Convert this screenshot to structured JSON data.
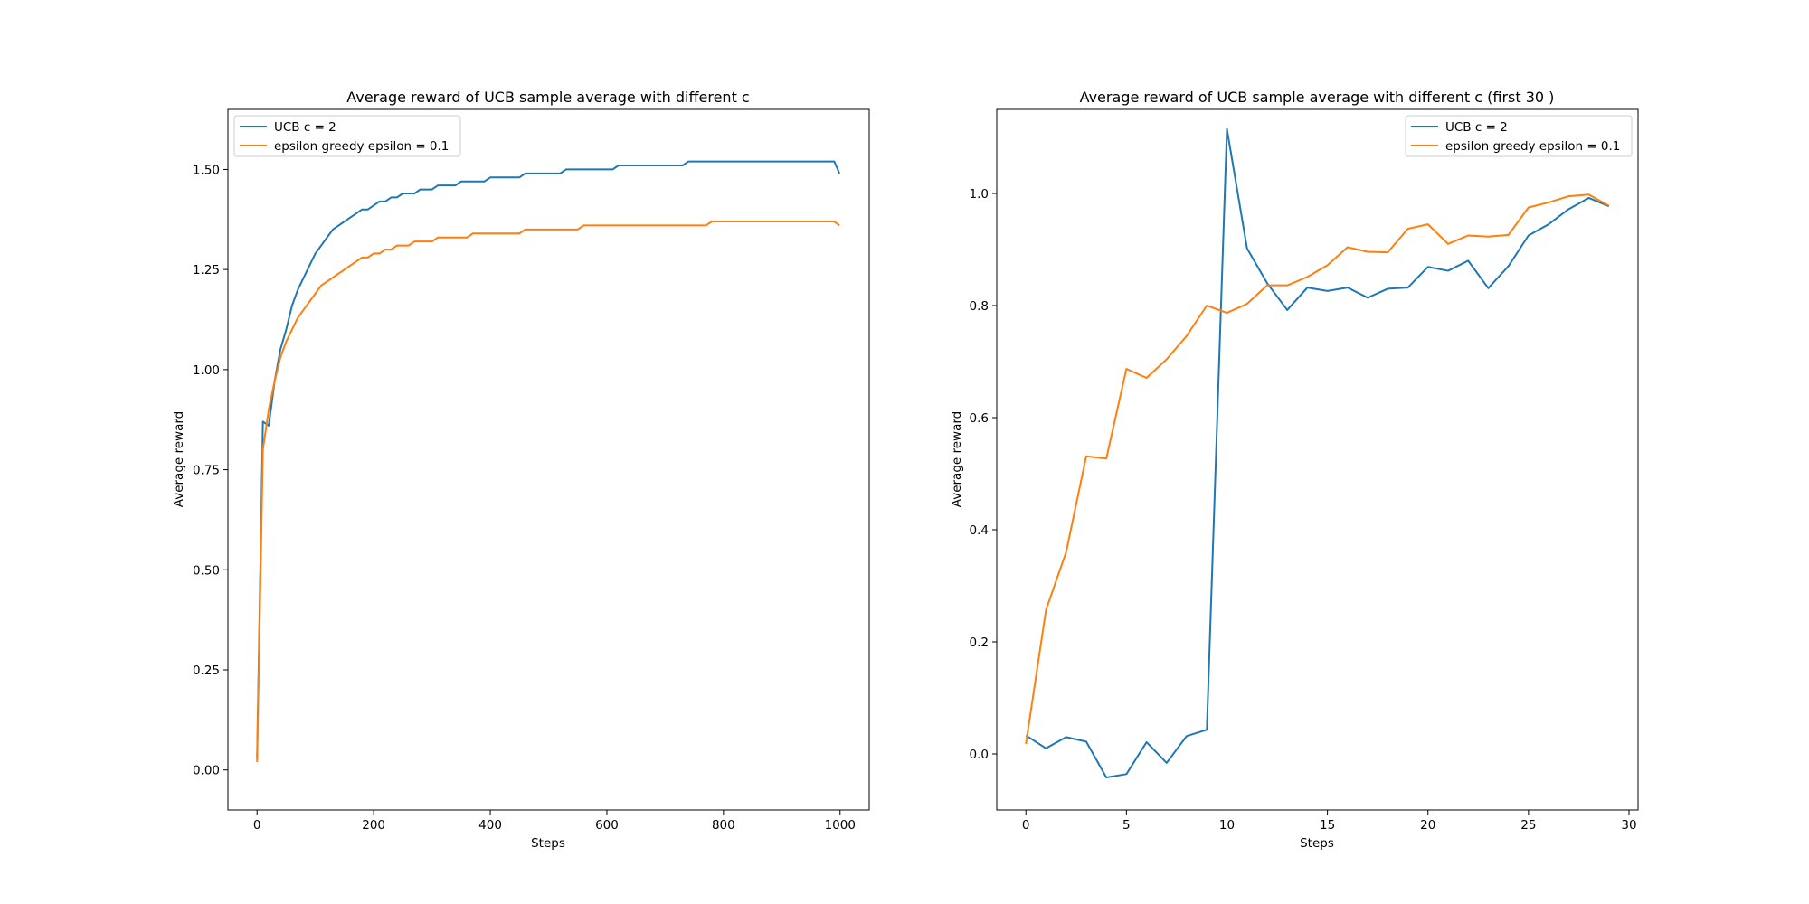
{
  "chart_data": [
    {
      "type": "line",
      "title": "Average reward of UCB sample average with different c",
      "xlabel": "Steps",
      "ylabel": "Average reward",
      "xlim": [
        -50,
        1050
      ],
      "ylim": [
        -0.1,
        1.65
      ],
      "xticks": [
        0,
        200,
        400,
        600,
        800,
        1000
      ],
      "xtick_labels": [
        "0",
        "200",
        "400",
        "600",
        "800",
        "1000"
      ],
      "yticks": [
        0.0,
        0.25,
        0.5,
        0.75,
        1.0,
        1.25,
        1.5
      ],
      "ytick_labels": [
        "0.00",
        "0.25",
        "0.50",
        "0.75",
        "1.00",
        "1.25",
        "1.50"
      ],
      "legend_position": "upper-left",
      "grid": false,
      "sampled_every": 10,
      "x": [
        0,
        10,
        20,
        30,
        40,
        50,
        60,
        70,
        80,
        90,
        100,
        110,
        120,
        130,
        140,
        150,
        160,
        170,
        180,
        190,
        200,
        210,
        220,
        230,
        240,
        250,
        260,
        270,
        280,
        290,
        300,
        310,
        320,
        330,
        340,
        350,
        360,
        370,
        380,
        390,
        400,
        410,
        420,
        430,
        440,
        450,
        460,
        470,
        480,
        490,
        500,
        510,
        520,
        530,
        540,
        550,
        560,
        570,
        580,
        590,
        600,
        610,
        620,
        630,
        640,
        650,
        660,
        670,
        680,
        690,
        700,
        710,
        720,
        730,
        740,
        750,
        760,
        770,
        780,
        790,
        800,
        810,
        820,
        830,
        840,
        850,
        860,
        870,
        880,
        890,
        900,
        910,
        920,
        930,
        940,
        950,
        960,
        970,
        980,
        990,
        999
      ],
      "series": [
        {
          "name": "UCB c = 2",
          "color": "#1f77b4",
          "values": [
            0.03,
            0.87,
            0.86,
            0.97,
            1.05,
            1.1,
            1.16,
            1.2,
            1.23,
            1.26,
            1.29,
            1.31,
            1.33,
            1.35,
            1.36,
            1.37,
            1.38,
            1.39,
            1.4,
            1.4,
            1.41,
            1.42,
            1.42,
            1.43,
            1.43,
            1.44,
            1.44,
            1.44,
            1.45,
            1.45,
            1.45,
            1.46,
            1.46,
            1.46,
            1.46,
            1.47,
            1.47,
            1.47,
            1.47,
            1.47,
            1.48,
            1.48,
            1.48,
            1.48,
            1.48,
            1.48,
            1.49,
            1.49,
            1.49,
            1.49,
            1.49,
            1.49,
            1.49,
            1.5,
            1.5,
            1.5,
            1.5,
            1.5,
            1.5,
            1.5,
            1.5,
            1.5,
            1.51,
            1.51,
            1.51,
            1.51,
            1.51,
            1.51,
            1.51,
            1.51,
            1.51,
            1.51,
            1.51,
            1.51,
            1.52,
            1.52,
            1.52,
            1.52,
            1.52,
            1.52,
            1.52,
            1.52,
            1.52,
            1.52,
            1.52,
            1.52,
            1.52,
            1.52,
            1.52,
            1.52,
            1.52,
            1.52,
            1.52,
            1.52,
            1.52,
            1.52,
            1.52,
            1.52,
            1.52,
            1.52,
            1.49
          ]
        },
        {
          "name": "epsilon greedy epsilon = 0.1",
          "color": "#ff7f0e",
          "values": [
            0.02,
            0.8,
            0.9,
            0.97,
            1.03,
            1.07,
            1.1,
            1.13,
            1.15,
            1.17,
            1.19,
            1.21,
            1.22,
            1.23,
            1.24,
            1.25,
            1.26,
            1.27,
            1.28,
            1.28,
            1.29,
            1.29,
            1.3,
            1.3,
            1.31,
            1.31,
            1.31,
            1.32,
            1.32,
            1.32,
            1.32,
            1.33,
            1.33,
            1.33,
            1.33,
            1.33,
            1.33,
            1.34,
            1.34,
            1.34,
            1.34,
            1.34,
            1.34,
            1.34,
            1.34,
            1.34,
            1.35,
            1.35,
            1.35,
            1.35,
            1.35,
            1.35,
            1.35,
            1.35,
            1.35,
            1.35,
            1.36,
            1.36,
            1.36,
            1.36,
            1.36,
            1.36,
            1.36,
            1.36,
            1.36,
            1.36,
            1.36,
            1.36,
            1.36,
            1.36,
            1.36,
            1.36,
            1.36,
            1.36,
            1.36,
            1.36,
            1.36,
            1.36,
            1.37,
            1.37,
            1.37,
            1.37,
            1.37,
            1.37,
            1.37,
            1.37,
            1.37,
            1.37,
            1.37,
            1.37,
            1.37,
            1.37,
            1.37,
            1.37,
            1.37,
            1.37,
            1.37,
            1.37,
            1.37,
            1.37,
            1.36
          ]
        }
      ]
    },
    {
      "type": "line",
      "title": "Average reward of UCB sample average with different c (first 30 )",
      "xlabel": "Steps",
      "ylabel": "Average reward",
      "xlim": [
        -1.45,
        30.45
      ],
      "ylim": [
        -0.1,
        1.15
      ],
      "xticks": [
        0,
        5,
        10,
        15,
        20,
        25,
        30
      ],
      "xtick_labels": [
        "0",
        "5",
        "10",
        "15",
        "20",
        "25",
        "30"
      ],
      "yticks": [
        0.0,
        0.2,
        0.4,
        0.6,
        0.8,
        1.0
      ],
      "ytick_labels": [
        "0.0",
        "0.2",
        "0.4",
        "0.6",
        "0.8",
        "1.0"
      ],
      "legend_position": "upper-right",
      "grid": false,
      "x": [
        0,
        1,
        2,
        3,
        4,
        5,
        6,
        7,
        8,
        9,
        10,
        11,
        12,
        13,
        14,
        15,
        16,
        17,
        18,
        19,
        20,
        21,
        22,
        23,
        24,
        25,
        26,
        27,
        28,
        29
      ],
      "series": [
        {
          "name": "UCB c = 2",
          "color": "#1f77b4",
          "values": [
            0.033,
            0.01,
            0.03,
            0.022,
            -0.042,
            -0.036,
            0.021,
            -0.016,
            0.032,
            0.043,
            1.115,
            0.902,
            0.84,
            0.792,
            0.832,
            0.826,
            0.832,
            0.814,
            0.83,
            0.832,
            0.869,
            0.862,
            0.88,
            0.831,
            0.87,
            0.925,
            0.945,
            0.972,
            0.992,
            0.977
          ]
        },
        {
          "name": "epsilon greedy epsilon = 0.1",
          "color": "#ff7f0e",
          "values": [
            0.018,
            0.257,
            0.36,
            0.531,
            0.527,
            0.687,
            0.671,
            0.704,
            0.746,
            0.8,
            0.787,
            0.803,
            0.836,
            0.836,
            0.851,
            0.872,
            0.904,
            0.896,
            0.895,
            0.937,
            0.945,
            0.91,
            0.925,
            0.923,
            0.926,
            0.975,
            0.984,
            0.995,
            0.998,
            0.978
          ]
        }
      ]
    }
  ]
}
